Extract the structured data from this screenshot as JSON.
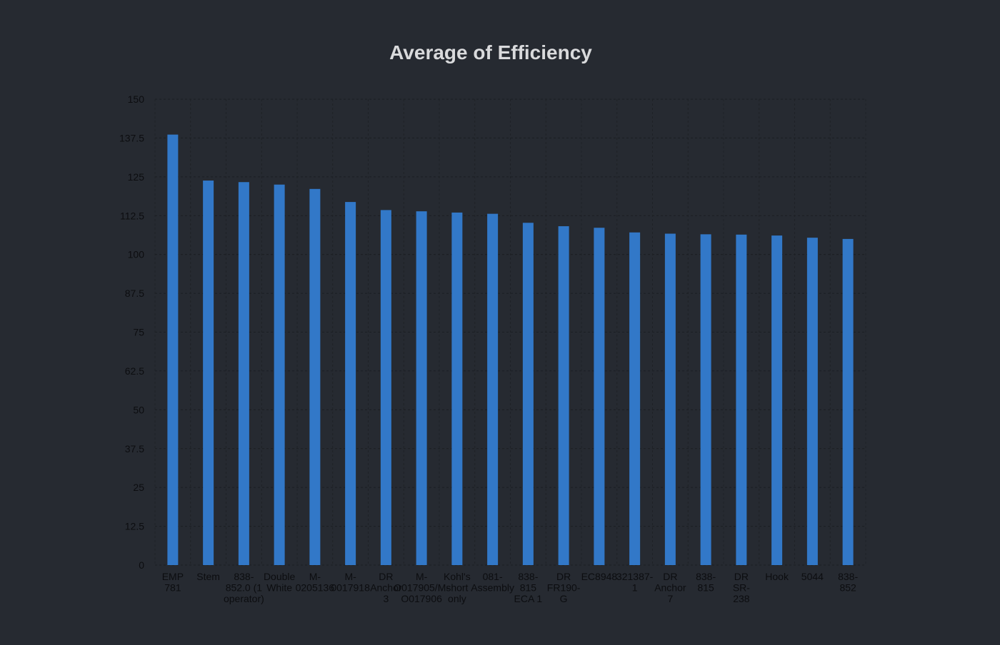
{
  "chart_data": {
    "type": "bar",
    "title": "Average of Efficiency",
    "xlabel": "",
    "ylabel": "",
    "ylim": [
      0,
      150
    ],
    "yticks": [
      "0",
      "12.5",
      "25",
      "37.5",
      "50",
      "62.5",
      "75",
      "87.5",
      "100",
      "112.5",
      "125",
      "137.5",
      "150"
    ],
    "grid": true,
    "bar_color": "#3278c8",
    "background": "#262a31",
    "categories": [
      [
        "EMP",
        "781"
      ],
      [
        "Stem"
      ],
      [
        "838-",
        "852.0 (1",
        "operator)"
      ],
      [
        "Double",
        "White"
      ],
      [
        "M-",
        "0205136"
      ],
      [
        "M-",
        "0017918"
      ],
      [
        "DR",
        "Anchor",
        "3"
      ],
      [
        "M-",
        "O017905/M-",
        "O017906"
      ],
      [
        "Kohl's",
        "short",
        "only"
      ],
      [
        "081-",
        "Assembly"
      ],
      [
        "838-",
        "815",
        "ECA 1"
      ],
      [
        "DR",
        "FR190-",
        "G"
      ],
      [
        "EC8948"
      ],
      [
        "321387-",
        "1"
      ],
      [
        "DR",
        "Anchor",
        "7"
      ],
      [
        "838-",
        "815"
      ],
      [
        "DR",
        "SR-",
        "238"
      ],
      [
        "Hook"
      ],
      [
        "5044"
      ],
      [
        "838-",
        "852"
      ]
    ],
    "values": [
      138.6,
      123.8,
      123.3,
      122.5,
      121.1,
      116.9,
      114.3,
      113.9,
      113.5,
      113.1,
      110.2,
      109.1,
      108.6,
      107.1,
      106.7,
      106.5,
      106.4,
      106.1,
      105.4,
      105.0
    ]
  }
}
